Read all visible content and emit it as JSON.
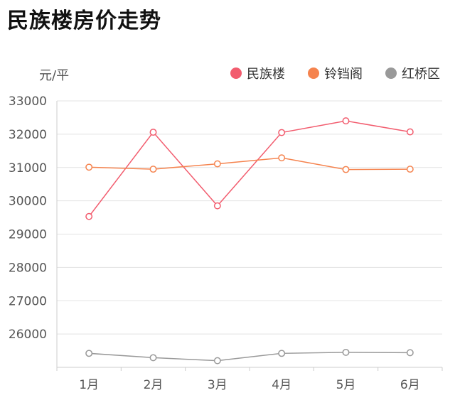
{
  "page": {
    "title": "民族楼房价走势"
  },
  "chart_data": {
    "type": "line",
    "title": "民族楼房价走势",
    "ylabel": "元/平",
    "categories": [
      "1月",
      "2月",
      "3月",
      "4月",
      "5月",
      "6月"
    ],
    "ylim": [
      25000,
      33000
    ],
    "yticks": [
      26000,
      27000,
      28000,
      29000,
      30000,
      31000,
      32000,
      33000
    ],
    "grid": true,
    "legend_position": "top-right",
    "series": [
      {
        "name": "民族楼",
        "color": "#f25c6e",
        "values": [
          29530,
          32060,
          29850,
          32050,
          32400,
          32070
        ]
      },
      {
        "name": "铃铛阁",
        "color": "#f5834e",
        "values": [
          31010,
          30950,
          31110,
          31290,
          30940,
          30950
        ]
      },
      {
        "name": "红桥区",
        "color": "#999999",
        "values": [
          25420,
          25290,
          25200,
          25420,
          25450,
          25440
        ]
      }
    ]
  }
}
